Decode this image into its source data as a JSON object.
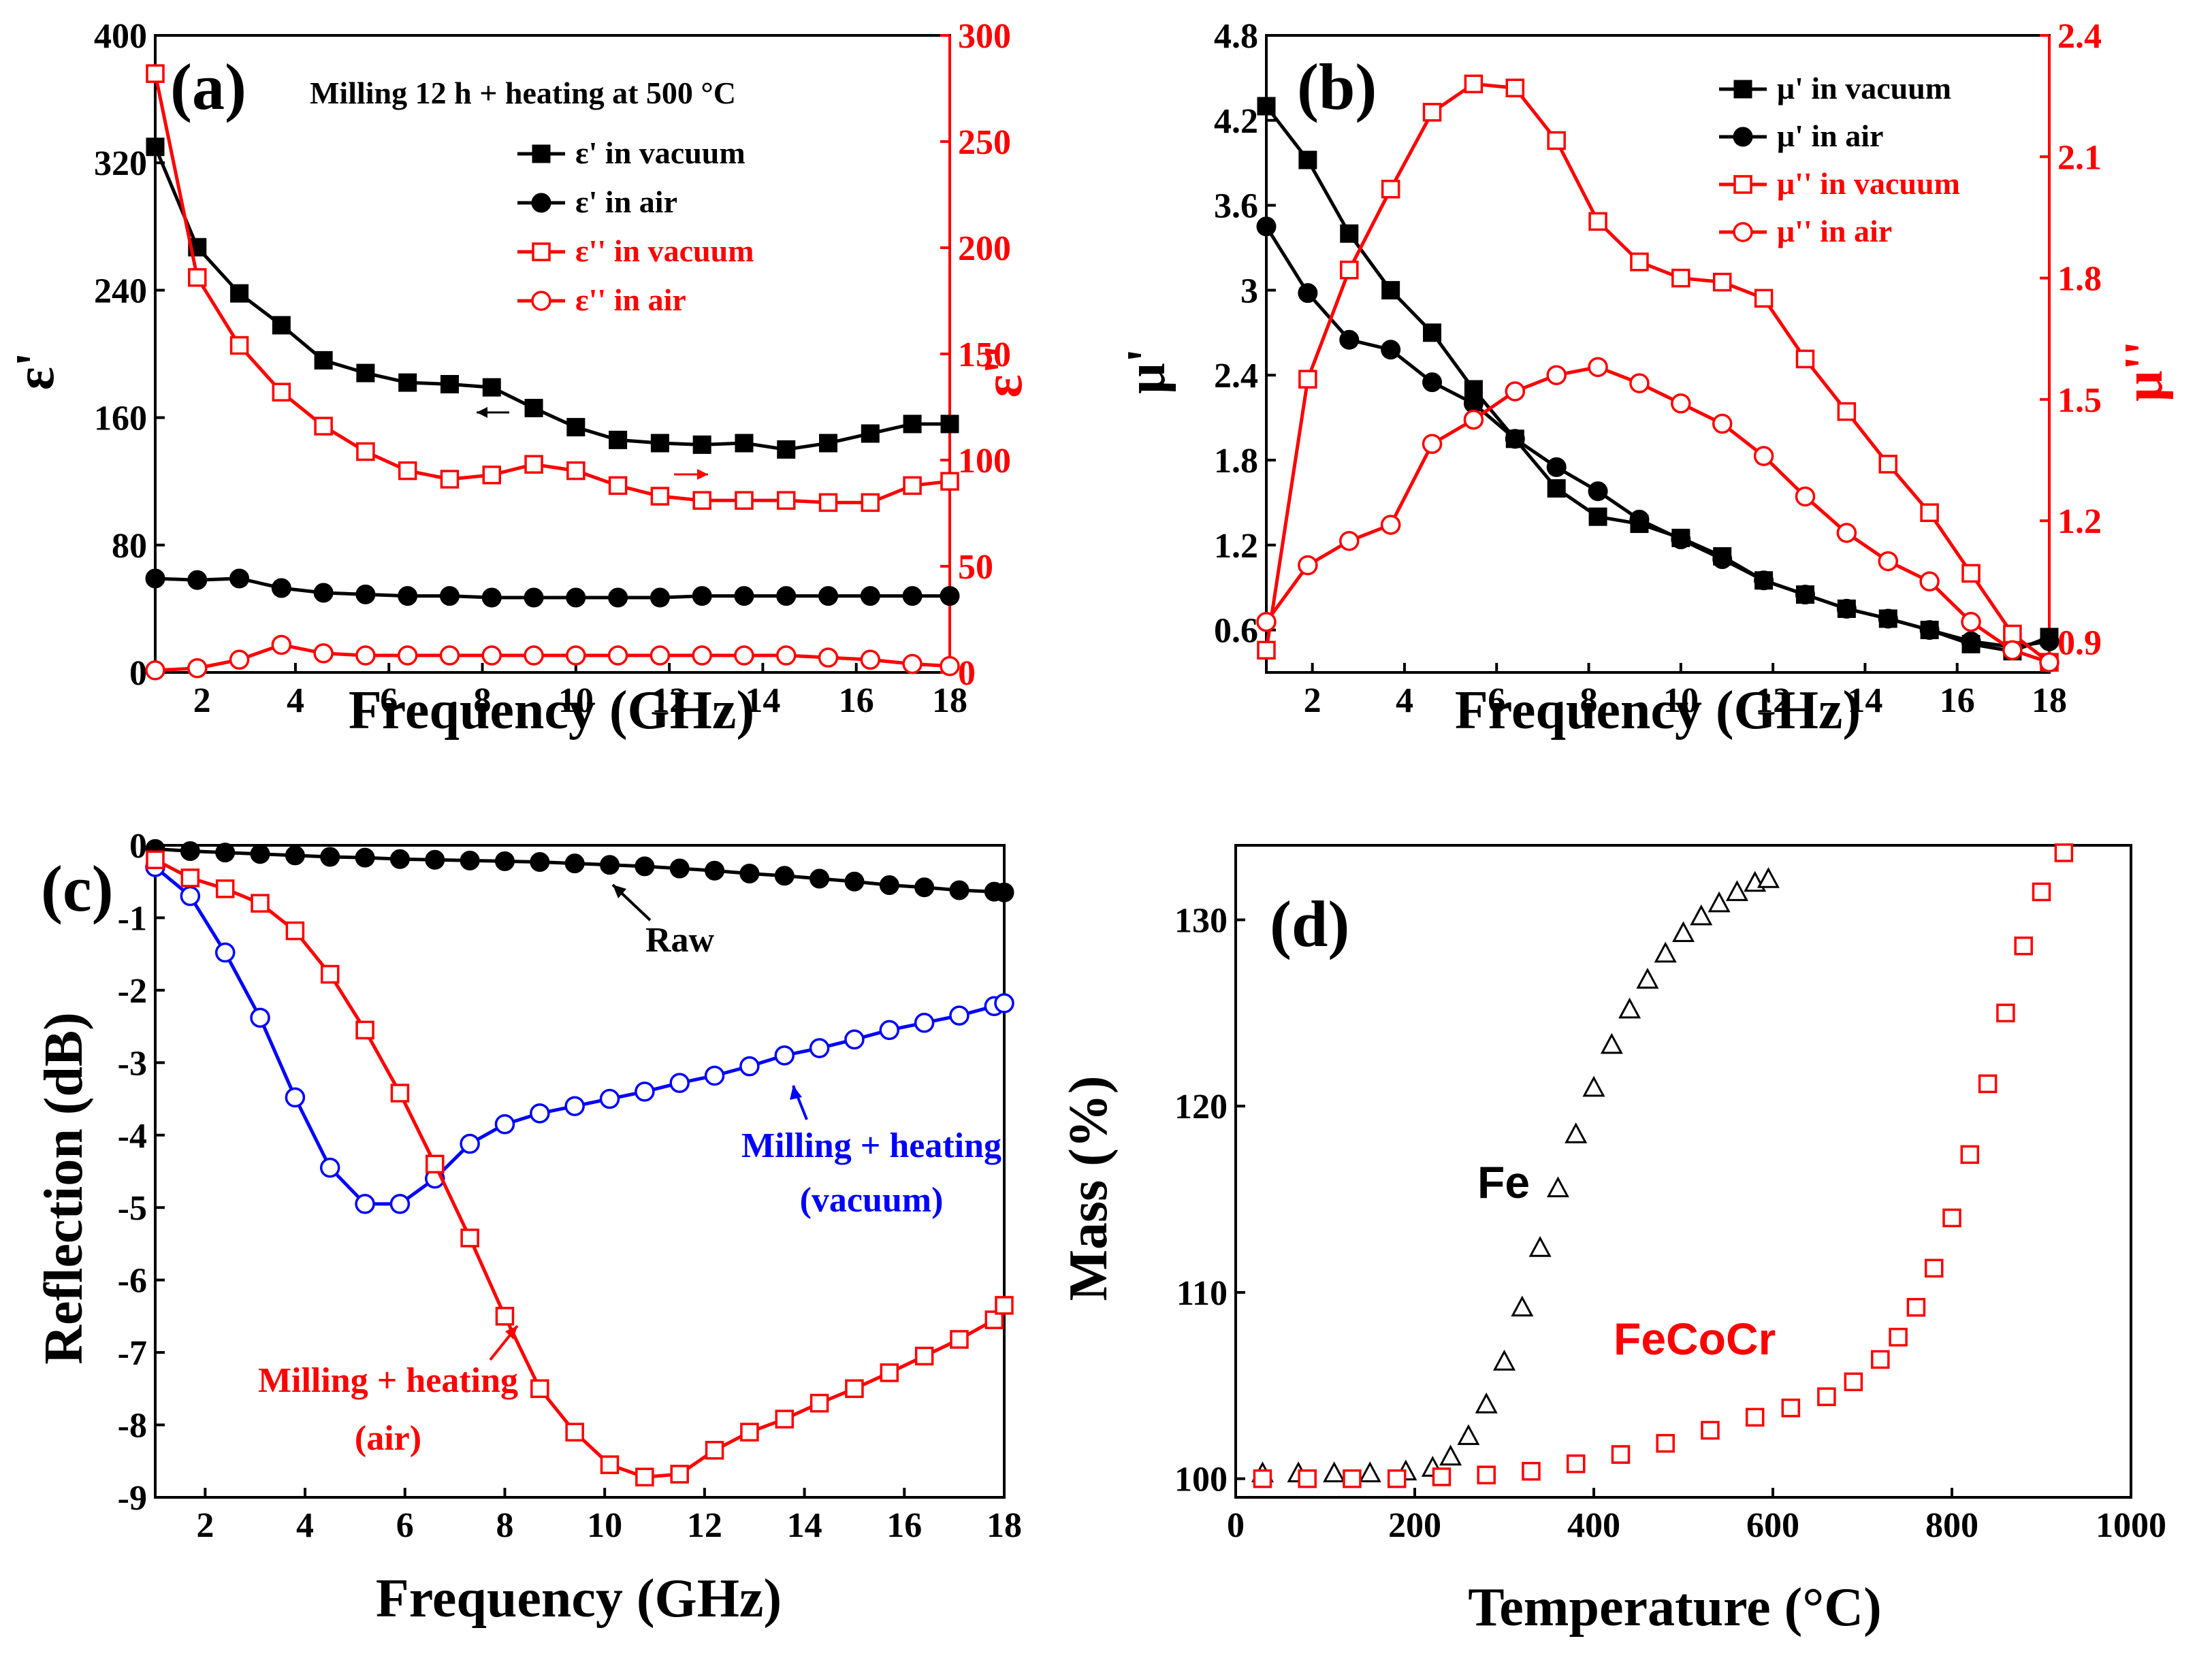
{
  "chart_data": [
    {
      "type": "line",
      "panel": "(a)",
      "title": "Milling 12 h + heating at 500 °C",
      "xlabel": "Frequency (GHz)",
      "ylabel": "ε'",
      "y2label": "ε''",
      "xlim": [
        1,
        18
      ],
      "ylim": [
        0,
        400
      ],
      "y2lim": [
        0,
        300
      ],
      "xticks": [
        2,
        4,
        6,
        8,
        10,
        12,
        14,
        16,
        18
      ],
      "yticks": [
        0,
        80,
        160,
        240,
        320,
        400
      ],
      "y2ticks": [
        0,
        50,
        100,
        150,
        200,
        250,
        300
      ],
      "series": [
        {
          "name": "ε'  in vacuum",
          "axis": "left",
          "color": "#000000",
          "marker": "square-filled",
          "x": [
            1,
            1.9,
            2.8,
            3.7,
            4.6,
            5.5,
            6.4,
            7.3,
            8.2,
            9.1,
            10,
            10.9,
            11.8,
            12.7,
            13.6,
            14.5,
            15.4,
            16.3,
            17.2,
            18
          ],
          "y": [
            330,
            267,
            238,
            218,
            196,
            188,
            182,
            181,
            179,
            166,
            154,
            146,
            144,
            143,
            144,
            140,
            144,
            150,
            156,
            156
          ]
        },
        {
          "name": "ε'  in air",
          "axis": "left",
          "color": "#000000",
          "marker": "circle-filled",
          "x": [
            1,
            1.9,
            2.8,
            3.7,
            4.6,
            5.5,
            6.4,
            7.3,
            8.2,
            9.1,
            10,
            10.9,
            11.8,
            12.7,
            13.6,
            14.5,
            15.4,
            16.3,
            17.2,
            18
          ],
          "y": [
            59,
            58,
            59,
            53,
            50,
            49,
            48,
            48,
            47,
            47,
            47,
            47,
            47,
            48,
            48,
            48,
            48,
            48,
            48,
            48
          ]
        },
        {
          "name": "ε''  in vacuum",
          "axis": "right",
          "color": "#ff0000",
          "marker": "square-open",
          "x": [
            1,
            1.9,
            2.8,
            3.7,
            4.6,
            5.5,
            6.4,
            7.3,
            8.2,
            9.1,
            10,
            10.9,
            11.8,
            12.7,
            13.6,
            14.5,
            15.4,
            16.3,
            17.2,
            18
          ],
          "y": [
            282,
            186,
            154,
            132,
            116,
            104,
            95,
            91,
            93,
            98,
            95,
            88,
            83,
            81,
            81,
            81,
            80,
            80,
            88,
            90
          ]
        },
        {
          "name": "ε''  in air",
          "axis": "right",
          "color": "#ff0000",
          "marker": "circle-open",
          "x": [
            1,
            1.9,
            2.8,
            3.7,
            4.6,
            5.5,
            6.4,
            7.3,
            8.2,
            9.1,
            10,
            10.9,
            11.8,
            12.7,
            13.6,
            14.5,
            15.4,
            16.3,
            17.2,
            18
          ],
          "y": [
            1,
            2,
            6,
            13,
            9,
            8,
            8,
            8,
            8,
            8,
            8,
            8,
            8,
            8,
            8,
            8,
            7,
            6,
            4,
            3
          ]
        }
      ]
    },
    {
      "type": "line",
      "panel": "(b)",
      "xlabel": "Frequency (GHz)",
      "ylabel": "μ'",
      "y2label": "μ''",
      "xlim": [
        1,
        18
      ],
      "ylim": [
        0.3,
        4.8
      ],
      "y2lim": [
        0.825,
        2.4
      ],
      "xticks": [
        2,
        4,
        6,
        8,
        10,
        12,
        14,
        16,
        18
      ],
      "yticks": [
        0.6,
        1.2,
        1.8,
        2.4,
        3.0,
        3.6,
        4.2,
        4.8
      ],
      "y2ticks": [
        0.9,
        1.2,
        1.5,
        1.8,
        2.1,
        2.4
      ],
      "series": [
        {
          "name": "μ'  in vacuum",
          "axis": "left",
          "color": "#000000",
          "marker": "square-filled",
          "x": [
            1,
            1.9,
            2.8,
            3.7,
            4.6,
            5.5,
            6.4,
            7.3,
            8.2,
            9.1,
            10,
            10.9,
            11.8,
            12.7,
            13.6,
            14.5,
            15.4,
            16.3,
            17.2,
            18
          ],
          "y": [
            4.3,
            3.92,
            3.4,
            3.0,
            2.7,
            2.3,
            1.95,
            1.6,
            1.4,
            1.35,
            1.25,
            1.12,
            0.95,
            0.85,
            0.75,
            0.68,
            0.6,
            0.5,
            0.45,
            0.55
          ]
        },
        {
          "name": "μ'  in air",
          "axis": "left",
          "color": "#000000",
          "marker": "circle-filled",
          "x": [
            1,
            1.9,
            2.8,
            3.7,
            4.6,
            5.5,
            6.4,
            7.3,
            8.2,
            9.1,
            10,
            10.9,
            11.8,
            12.7,
            13.6,
            14.5,
            15.4,
            16.3,
            17.2,
            18
          ],
          "y": [
            3.45,
            2.98,
            2.65,
            2.58,
            2.35,
            2.2,
            1.95,
            1.75,
            1.58,
            1.38,
            1.24,
            1.1,
            0.95,
            0.85,
            0.75,
            0.68,
            0.6,
            0.52,
            0.48,
            0.52
          ]
        },
        {
          "name": "μ''  in vacuum",
          "axis": "right",
          "color": "#ff0000",
          "marker": "square-open",
          "x": [
            1,
            1.9,
            2.8,
            3.7,
            4.6,
            5.5,
            6.4,
            7.3,
            8.2,
            9.1,
            10,
            10.9,
            11.8,
            12.7,
            13.6,
            14.5,
            15.4,
            16.3,
            17.2,
            18
          ],
          "y": [
            0.88,
            1.55,
            1.82,
            2.02,
            2.21,
            2.28,
            2.27,
            2.14,
            1.94,
            1.84,
            1.8,
            1.79,
            1.75,
            1.6,
            1.47,
            1.34,
            1.22,
            1.07,
            0.92,
            0.85
          ]
        },
        {
          "name": "μ''  in air",
          "axis": "right",
          "color": "#ff0000",
          "marker": "circle-open",
          "x": [
            1,
            1.9,
            2.8,
            3.7,
            4.6,
            5.5,
            6.4,
            7.3,
            8.2,
            9.1,
            10,
            10.9,
            11.8,
            12.7,
            13.6,
            14.5,
            15.4,
            16.3,
            17.2,
            18
          ],
          "y": [
            0.95,
            1.09,
            1.15,
            1.19,
            1.39,
            1.45,
            1.52,
            1.56,
            1.58,
            1.54,
            1.49,
            1.44,
            1.36,
            1.26,
            1.17,
            1.1,
            1.05,
            0.95,
            0.88,
            0.85
          ]
        }
      ]
    },
    {
      "type": "line",
      "panel": "(c)",
      "xlabel": "Frequency (GHz)",
      "ylabel": "Reflection (dB)",
      "xlim": [
        1,
        18
      ],
      "ylim": [
        -9,
        0
      ],
      "xticks": [
        2,
        4,
        6,
        8,
        10,
        12,
        14,
        16,
        18
      ],
      "yticks": [
        0,
        -1,
        -2,
        -3,
        -4,
        -5,
        -6,
        -7,
        -8,
        -9
      ],
      "annotations": [
        "Raw",
        "Milling + heating",
        "(vacuum)",
        "Milling + heating",
        "(air)"
      ],
      "series": [
        {
          "name": "Raw",
          "color": "#000000",
          "marker": "circle-filled",
          "x": [
            1,
            1.7,
            2.4,
            3.1,
            3.8,
            4.5,
            5.2,
            5.9,
            6.6,
            7.3,
            8,
            8.7,
            9.4,
            10.1,
            10.8,
            11.5,
            12.2,
            12.9,
            13.6,
            14.3,
            15,
            15.7,
            16.4,
            17.1,
            17.8,
            18
          ],
          "y": [
            -0.05,
            -0.08,
            -0.1,
            -0.12,
            -0.14,
            -0.16,
            -0.17,
            -0.19,
            -0.2,
            -0.21,
            -0.22,
            -0.23,
            -0.25,
            -0.27,
            -0.29,
            -0.32,
            -0.35,
            -0.39,
            -0.42,
            -0.46,
            -0.5,
            -0.55,
            -0.58,
            -0.62,
            -0.64,
            -0.65
          ]
        },
        {
          "name": "Milling + heating (vacuum)",
          "color": "#0000ff",
          "marker": "circle-open",
          "x": [
            1,
            1.7,
            2.4,
            3.1,
            3.8,
            4.5,
            5.2,
            5.9,
            6.6,
            7.3,
            8,
            8.7,
            9.4,
            10.1,
            10.8,
            11.5,
            12.2,
            12.9,
            13.6,
            14.3,
            15,
            15.7,
            16.4,
            17.1,
            17.8,
            18
          ],
          "y": [
            -0.3,
            -0.7,
            -1.48,
            -2.38,
            -3.48,
            -4.45,
            -4.95,
            -4.95,
            -4.6,
            -4.12,
            -3.85,
            -3.7,
            -3.6,
            -3.5,
            -3.4,
            -3.28,
            -3.18,
            -3.05,
            -2.9,
            -2.8,
            -2.68,
            -2.55,
            -2.45,
            -2.35,
            -2.22,
            -2.18
          ]
        },
        {
          "name": "Milling + heating (air)",
          "color": "#ff0000",
          "marker": "square-open",
          "x": [
            1,
            1.7,
            2.4,
            3.1,
            3.8,
            4.5,
            5.2,
            5.9,
            6.6,
            7.3,
            8,
            8.7,
            9.4,
            10.1,
            10.8,
            11.5,
            12.2,
            12.9,
            13.6,
            14.3,
            15,
            15.7,
            16.4,
            17.1,
            17.8,
            18
          ],
          "y": [
            -0.2,
            -0.45,
            -0.6,
            -0.8,
            -1.18,
            -1.78,
            -2.55,
            -3.42,
            -4.4,
            -5.42,
            -6.5,
            -7.5,
            -8.1,
            -8.55,
            -8.72,
            -8.68,
            -8.35,
            -8.1,
            -7.92,
            -7.7,
            -7.5,
            -7.28,
            -7.05,
            -6.82,
            -6.55,
            -6.35
          ]
        }
      ]
    },
    {
      "type": "scatter",
      "panel": "(d)",
      "xlabel": "Temperature (°C)",
      "ylabel": "Mass (%)",
      "xlim": [
        0,
        1000
      ],
      "ylim": [
        99,
        134
      ],
      "xticks": [
        0,
        200,
        400,
        600,
        800,
        1000
      ],
      "yticks": [
        100,
        110,
        120,
        130
      ],
      "annotations": [
        "Fe",
        "FeCoCr"
      ],
      "series": [
        {
          "name": "Fe",
          "color": "#000000",
          "marker": "triangle-open",
          "x": [
            30,
            70,
            110,
            150,
            190,
            220,
            240,
            260,
            280,
            300,
            320,
            340,
            360,
            380,
            400,
            420,
            440,
            460,
            480,
            500,
            520,
            540,
            560,
            580,
            595
          ],
          "y": [
            100.3,
            100.3,
            100.3,
            100.3,
            100.4,
            100.6,
            101.2,
            102.3,
            104,
            106.3,
            109.2,
            112.4,
            115.6,
            118.5,
            121,
            123.3,
            125.2,
            126.8,
            128.2,
            129.3,
            130.2,
            130.9,
            131.5,
            132,
            132.2
          ]
        },
        {
          "name": "FeCoCr",
          "color": "#ff0000",
          "marker": "square-open",
          "x": [
            30,
            80,
            130,
            180,
            230,
            280,
            330,
            380,
            430,
            480,
            530,
            580,
            620,
            660,
            690,
            720,
            740,
            760,
            780,
            800,
            820,
            840,
            860,
            880,
            900,
            925
          ],
          "y": [
            100,
            100,
            100,
            100,
            100.1,
            100.2,
            100.4,
            100.8,
            101.3,
            101.9,
            102.6,
            103.3,
            103.8,
            104.4,
            105.2,
            106.4,
            107.6,
            109.2,
            111.3,
            114,
            117.4,
            121.2,
            125,
            128.6,
            131.5,
            133.6
          ]
        }
      ]
    }
  ]
}
